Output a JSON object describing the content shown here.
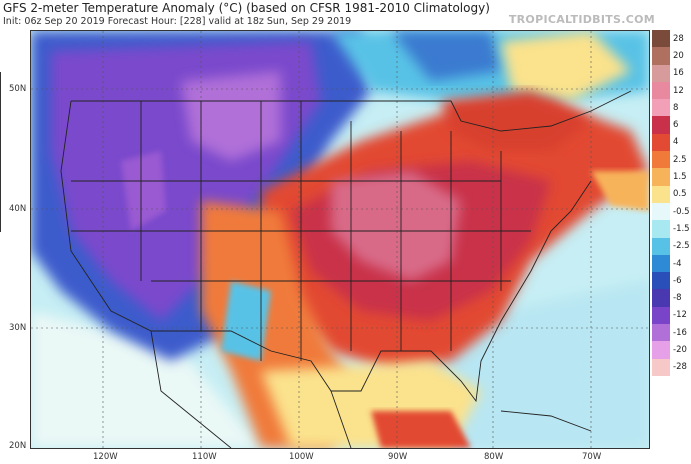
{
  "header": {
    "title": "GFS 2-meter Temperature Anomaly (°C) (based on CFSR 1981-2010 Climatology)",
    "subtitle": "Init: 06z Sep 20 2019   Forecast Hour: [228]   valid at 18z Sun, Sep 29 2019",
    "brand": "TROPICALTIDBITS.COM"
  },
  "map": {
    "lat_labels": [
      "50N",
      "40N",
      "30N",
      "20N"
    ],
    "lon_labels": [
      "120W",
      "110W",
      "100W",
      "90W",
      "80W",
      "70W"
    ],
    "colorbar": [
      {
        "label": "28",
        "color": "#7a4a3a"
      },
      {
        "label": "20",
        "color": "#b07060"
      },
      {
        "label": "16",
        "color": "#d89b9b"
      },
      {
        "label": "12",
        "color": "#e889a0"
      },
      {
        "label": "8",
        "color": "#f1a0b8"
      },
      {
        "label": "6",
        "color": "#c9304a"
      },
      {
        "label": "4",
        "color": "#e24a33"
      },
      {
        "label": "2.5",
        "color": "#f07a3a"
      },
      {
        "label": "1.5",
        "color": "#f7b35a"
      },
      {
        "label": "0.5",
        "color": "#fbe28c"
      },
      {
        "label": "-0.5",
        "color": "#e6f8f9"
      },
      {
        "label": "-1.5",
        "color": "#a8e8f0"
      },
      {
        "label": "-2.5",
        "color": "#58c2e6"
      },
      {
        "label": "-4",
        "color": "#2f8ad6"
      },
      {
        "label": "-6",
        "color": "#2a4fb8"
      },
      {
        "label": "-8",
        "color": "#4a38b0"
      },
      {
        "label": "-12",
        "color": "#7a44c8"
      },
      {
        "label": "-16",
        "color": "#b070d8"
      },
      {
        "label": "-20",
        "color": "#e6a0e8"
      },
      {
        "label": "-28",
        "color": "#f6c8c8"
      }
    ]
  }
}
